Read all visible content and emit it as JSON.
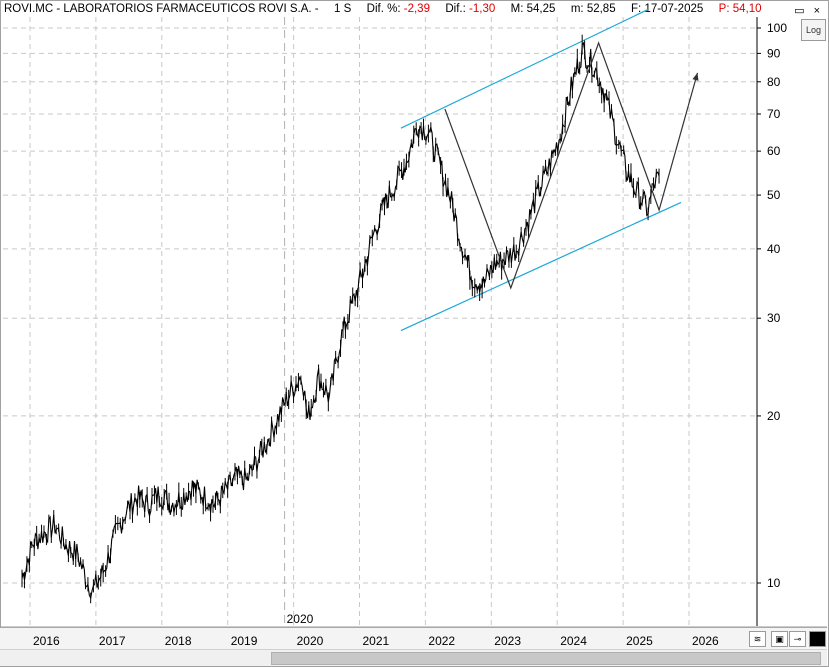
{
  "header": {
    "symbol_name": "ROVI.MC - LABORATORIOS FARMACEUTICOS ROVI S.A. -",
    "period": "1 S",
    "dif_pct_label": "Dif. %:",
    "dif_pct_value": "-2,39",
    "dif_label": "Dif.:",
    "dif_value": "-1,30",
    "max_label": "M:",
    "max_value": "54,25",
    "min_label": "m:",
    "min_value": "52,85",
    "date_label": "F:",
    "date_value": "17-07-2025",
    "price_label": "P:",
    "price_value": "54,10"
  },
  "controls": {
    "log_label": "Log",
    "window_buttons": "▭ ×"
  },
  "colors": {
    "price": "#000000",
    "channel": "#1aa8d8",
    "negative": "#e00000",
    "grid": "#c8c8c8"
  },
  "chart_data": {
    "type": "line",
    "scale": "log",
    "ylim": [
      9,
      108
    ],
    "y_ticks": [
      10,
      20,
      30,
      40,
      50,
      60,
      70,
      80,
      90,
      100
    ],
    "x_ticks": [
      "2016",
      "2017",
      "2018",
      "2019",
      "2020",
      "2021",
      "2022",
      "2023",
      "2024",
      "2025",
      "2026"
    ],
    "cursor_label": "2020",
    "series": [
      {
        "values": [
          [
            "2015-11",
            10.2
          ],
          [
            "2016-01",
            11.8
          ],
          [
            "2016-03",
            12.3
          ],
          [
            "2016-05",
            12.7
          ],
          [
            "2016-07",
            11.7
          ],
          [
            "2016-09",
            11.3
          ],
          [
            "2016-11",
            10.0
          ],
          [
            "2016-12",
            9.7
          ],
          [
            "2017-02",
            10.6
          ],
          [
            "2017-04",
            12.2
          ],
          [
            "2017-06",
            13.5
          ],
          [
            "2017-08",
            14.3
          ],
          [
            "2017-10",
            13.8
          ],
          [
            "2017-12",
            14.5
          ],
          [
            "2018-02",
            13.9
          ],
          [
            "2018-04",
            14.2
          ],
          [
            "2018-06",
            14.9
          ],
          [
            "2018-08",
            14.4
          ],
          [
            "2018-10",
            13.9
          ],
          [
            "2018-12",
            14.6
          ],
          [
            "2019-02",
            15.5
          ],
          [
            "2019-04",
            15.3
          ],
          [
            "2019-06",
            16.8
          ],
          [
            "2019-08",
            18.3
          ],
          [
            "2019-10",
            20.3
          ],
          [
            "2019-12",
            22.2
          ],
          [
            "2020-02",
            23.8
          ],
          [
            "2020-03",
            19.7
          ],
          [
            "2020-05",
            23.5
          ],
          [
            "2020-07",
            21.6
          ],
          [
            "2020-09",
            27.5
          ],
          [
            "2020-11",
            31.5
          ],
          [
            "2021-01",
            36.0
          ],
          [
            "2021-03",
            42.5
          ],
          [
            "2021-05",
            48.0
          ],
          [
            "2021-07",
            52.5
          ],
          [
            "2021-09",
            57.5
          ],
          [
            "2021-11",
            67.0
          ],
          [
            "2022-01",
            65.0
          ],
          [
            "2022-03",
            57.0
          ],
          [
            "2022-05",
            49.5
          ],
          [
            "2022-07",
            41.0
          ],
          [
            "2022-09",
            35.5
          ],
          [
            "2022-11",
            34.5
          ],
          [
            "2023-01",
            37.5
          ],
          [
            "2023-03",
            38.5
          ],
          [
            "2023-05",
            40.0
          ],
          [
            "2023-07",
            44.5
          ],
          [
            "2023-09",
            50.5
          ],
          [
            "2023-11",
            56.5
          ],
          [
            "2024-01",
            64.0
          ],
          [
            "2024-03",
            78.0
          ],
          [
            "2024-05",
            91.0
          ],
          [
            "2024-07",
            86.0
          ],
          [
            "2024-09",
            77.0
          ],
          [
            "2024-11",
            65.0
          ],
          [
            "2025-01",
            55.5
          ],
          [
            "2025-03",
            50.5
          ],
          [
            "2025-05",
            47.0
          ],
          [
            "2025-06",
            52.0
          ],
          [
            "2025-07",
            54.1
          ]
        ]
      }
    ],
    "channel_upper": [
      [
        "2021-08",
        66.0
      ],
      [
        "2025-05",
        108.0
      ]
    ],
    "channel_lower": [
      [
        "2021-08",
        28.5
      ],
      [
        "2025-11",
        48.5
      ]
    ],
    "pattern_path": [
      [
        "2022-04",
        71.5
      ],
      [
        "2023-04",
        34.0
      ],
      [
        "2024-08",
        94.0
      ],
      [
        "2025-07",
        47.0
      ],
      [
        "2026-02",
        83.0
      ]
    ]
  }
}
